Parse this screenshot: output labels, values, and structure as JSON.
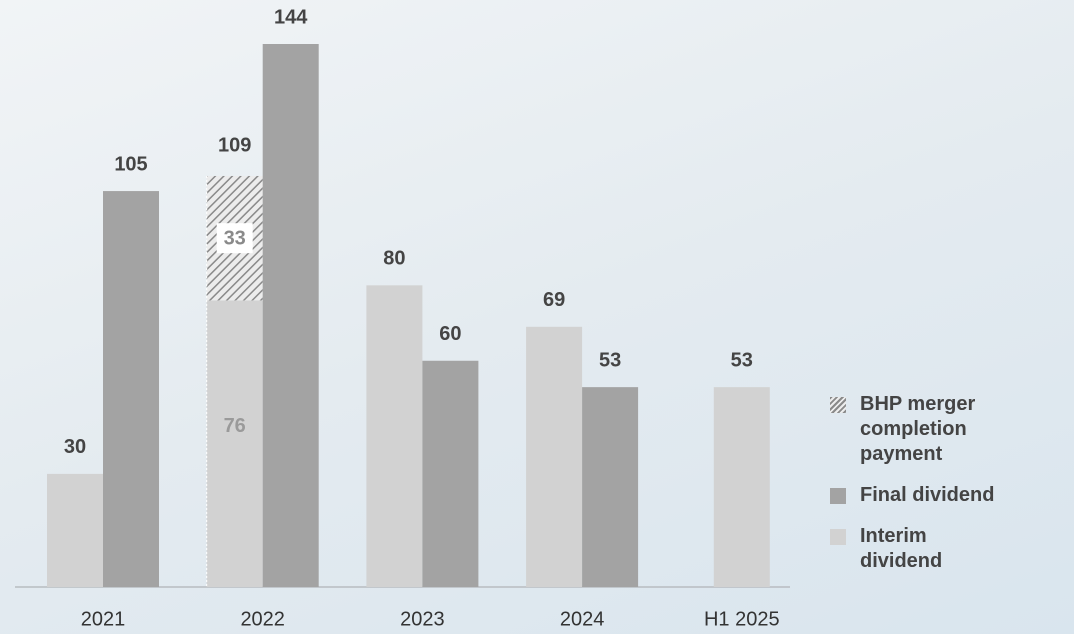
{
  "chart_data": {
    "type": "bar",
    "categories": [
      "2021",
      "2022",
      "2023",
      "2024",
      "H1 2025"
    ],
    "series": [
      {
        "name": "Interim dividend",
        "color": "#d2d2d2",
        "values": [
          30,
          76,
          80,
          69,
          53
        ]
      },
      {
        "name": "Final dividend",
        "color": "#a3a3a3",
        "values": [
          105,
          144,
          60,
          53,
          null
        ]
      },
      {
        "name": "BHP merger completion payment",
        "color": "#8a8a8a",
        "pattern": "hatch",
        "stacked": true,
        "values": [
          null,
          33,
          null,
          null,
          null
        ]
      }
    ],
    "stack_totals": [
      null,
      109,
      null,
      null,
      null
    ]
  }
}
